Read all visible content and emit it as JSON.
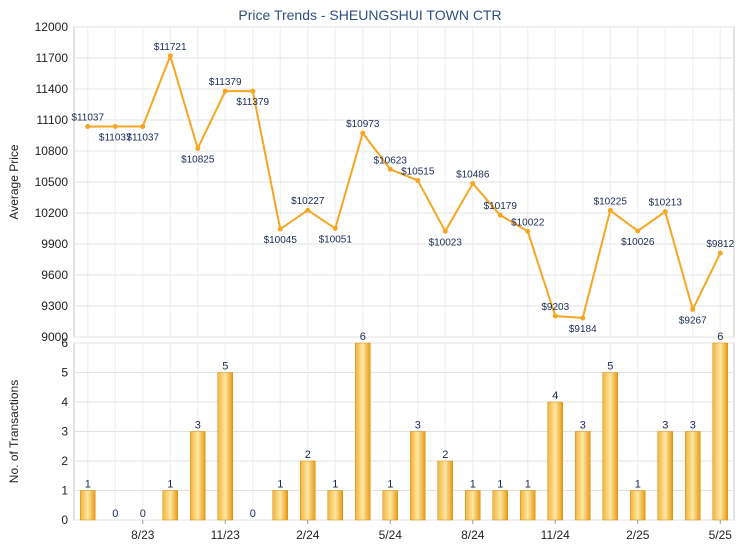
{
  "chart_data": [
    {
      "type": "line",
      "title": "Price Trends - SHEUNGSHUI TOWN CTR",
      "ylabel": "Average Price",
      "ylim": [
        9000,
        12000
      ],
      "yticks": [
        9000,
        9300,
        9600,
        9900,
        10200,
        10500,
        10800,
        11100,
        11400,
        11700,
        12000
      ],
      "line_color": "#f5a623",
      "series": [
        {
          "values": [
            11037,
            11037,
            11037,
            11721,
            10825,
            11379,
            11379,
            10045,
            10227,
            10051,
            10973,
            10623,
            10515,
            10023,
            10486,
            10179,
            10022,
            9203,
            9184,
            10225,
            10026,
            10213,
            9267,
            9812
          ],
          "labels": [
            "$11037",
            "$11037",
            "$11037",
            "$11721",
            "$10825",
            "$11379",
            "$11379",
            "$10045",
            "$10227",
            "$10051",
            "$10973",
            "$10623",
            "$10515",
            "$10023",
            "$10486",
            "$10179",
            "$10022",
            "$9203",
            "$9184",
            "$10225",
            "$10026",
            "$10213",
            "$9267",
            "$9812"
          ],
          "present": [
            true,
            true,
            true,
            true,
            true,
            true,
            true,
            true,
            true,
            true,
            true,
            true,
            true,
            true,
            true,
            true,
            true,
            true,
            true,
            true,
            true,
            true,
            true,
            true
          ]
        }
      ]
    },
    {
      "type": "bar",
      "ylabel": "No. of Transactions",
      "ylim": [
        0,
        6
      ],
      "yticks": [
        0,
        1,
        2,
        3,
        4,
        5,
        6
      ],
      "bar_color": "#f5a623",
      "values": [
        1,
        0,
        0,
        1,
        3,
        5,
        0,
        1,
        2,
        1,
        6,
        1,
        3,
        2,
        1,
        1,
        1,
        4,
        3,
        5,
        1,
        3,
        3,
        6
      ],
      "x_tick_labels": [
        "8/23",
        "11/23",
        "2/24",
        "5/24",
        "8/24",
        "11/24",
        "2/25",
        "5/25"
      ]
    }
  ]
}
